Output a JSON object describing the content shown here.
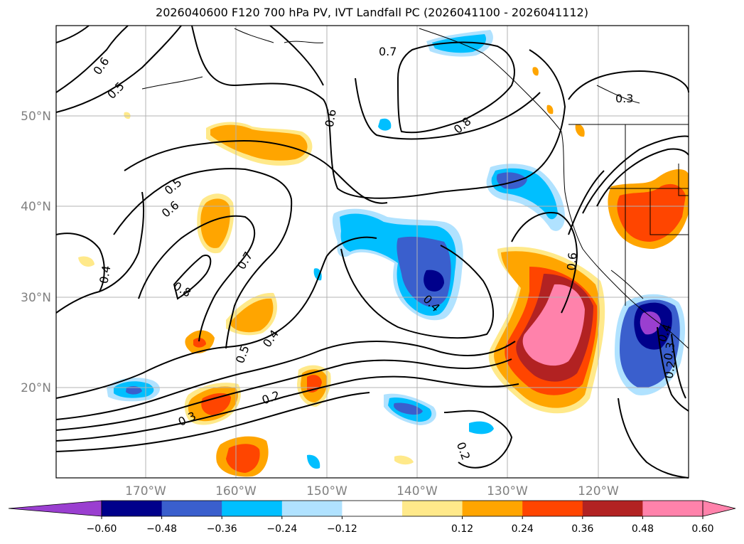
{
  "title": "2026040600 F120 700 hPa PV, IVT Landfall PC (2026041100 - 2026041112)",
  "map": {
    "lat_labels": [
      "50°N",
      "40°N",
      "30°N",
      "20°N"
    ],
    "lon_labels": [
      "170°W",
      "160°W",
      "150°W",
      "140°W",
      "130°W",
      "120°W"
    ],
    "contour_labels": [
      "0.6",
      "0.5",
      "0.7",
      "0.6",
      "0.8",
      "0.3",
      "0.5",
      "0.6",
      "0.8",
      "0.7",
      "0.4",
      "0.4",
      "0.5",
      "0.4",
      "0.2",
      "0.3",
      "0.2",
      "0.6",
      "0.4",
      "0.3",
      "0.2"
    ]
  },
  "colorbar": {
    "colors": [
      "#9a3fd0",
      "#00008b",
      "#3a5fcd",
      "#00bfff",
      "#b0e2ff",
      "#ffffff",
      "#ffe98a",
      "#ffa500",
      "#ff4500",
      "#b22222",
      "#ff82ab",
      "#ff82ab"
    ],
    "labels": [
      "−0.60",
      "−0.48",
      "−0.36",
      "−0.24",
      "−0.12",
      "0.12",
      "0.24",
      "0.36",
      "0.48",
      "0.60"
    ]
  }
}
